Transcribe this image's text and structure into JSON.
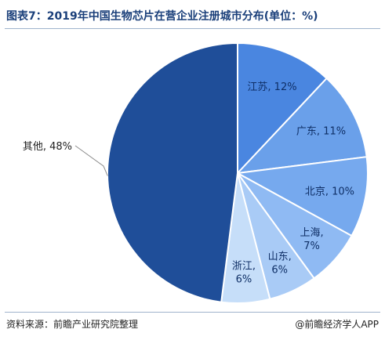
{
  "chart_data": {
    "type": "pie",
    "title": "图表7：2019年中国生物芯片在营企业注册城市分布(单位：%)",
    "slices": [
      {
        "name": "江苏",
        "value": 12,
        "label_lines": [
          "江苏, 12%"
        ],
        "color": "#4a86e0",
        "text_color": "#0f2f66"
      },
      {
        "name": "广东",
        "value": 11,
        "label_lines": [
          "广东, 11%"
        ],
        "color": "#6aa0ea",
        "text_color": "#0f2f66"
      },
      {
        "name": "北京",
        "value": 10,
        "label_lines": [
          "北京, 10%"
        ],
        "color": "#76a9ee",
        "text_color": "#0f2f66"
      },
      {
        "name": "上海",
        "value": 7,
        "label_lines": [
          "上海,",
          "7%"
        ],
        "color": "#8fbaf3",
        "text_color": "#0f2f66"
      },
      {
        "name": "山东",
        "value": 6,
        "label_lines": [
          "山东,",
          "6%"
        ],
        "color": "#a9cbf6",
        "text_color": "#0f2f66"
      },
      {
        "name": "浙江",
        "value": 6,
        "label_lines": [
          "浙江,",
          "6%"
        ],
        "color": "#c6def9",
        "text_color": "#0f2f66"
      },
      {
        "name": "其他",
        "value": 48,
        "label_lines": [
          "其他, 48%"
        ],
        "color": "#1f4e99",
        "text_color": "#222222",
        "external": true
      }
    ]
  },
  "footer": {
    "source": "资料来源：前瞻产业研究院整理",
    "brand": "@前瞻经济学人APP"
  }
}
